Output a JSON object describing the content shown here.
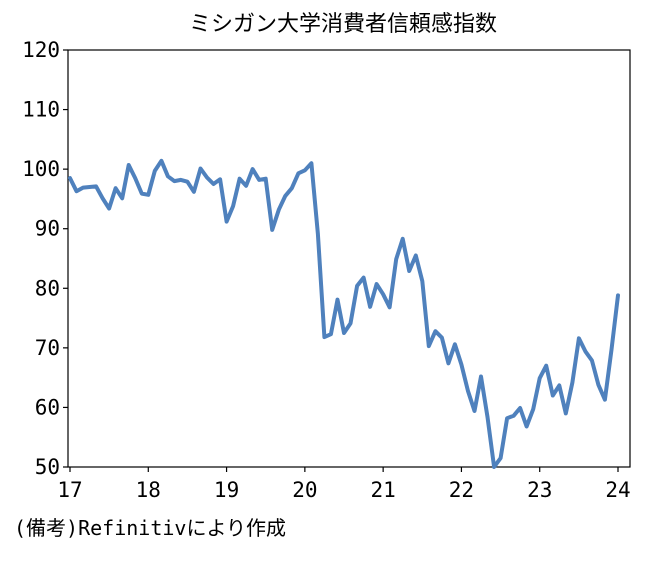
{
  "chart_data": {
    "type": "line",
    "title": "ミシガン大学消費者信頼感指数",
    "xlabel": "",
    "ylabel": "",
    "source_note": "(備考)Refinitivにより作成",
    "ylim": [
      50,
      120
    ],
    "yticks": [
      "120",
      "110",
      "100",
      "90",
      "80",
      "70",
      "60",
      "50"
    ],
    "xticks": [
      "17",
      "18",
      "19",
      "20",
      "21",
      "22",
      "23",
      "24"
    ],
    "xlim": [
      17,
      24
    ],
    "grid": false,
    "legend": "none",
    "line_color": "#4F81BD",
    "series": [
      {
        "x": [
          17.0,
          17.083,
          17.167,
          17.25,
          17.333,
          17.417,
          17.5,
          17.583,
          17.667,
          17.75,
          17.833,
          17.917,
          18.0,
          18.083,
          18.167,
          18.25,
          18.333,
          18.417,
          18.5,
          18.583,
          18.667,
          18.75,
          18.833,
          18.917,
          19.0,
          19.083,
          19.167,
          19.25,
          19.333,
          19.417,
          19.5,
          19.583,
          19.667,
          19.75,
          19.833,
          19.917,
          20.0,
          20.083,
          20.167,
          20.25,
          20.333,
          20.417,
          20.5,
          20.583,
          20.667,
          20.75,
          20.833,
          20.917,
          21.0,
          21.083,
          21.167,
          21.25,
          21.333,
          21.417,
          21.5,
          21.583,
          21.667,
          21.75,
          21.833,
          21.917,
          22.0,
          22.083,
          22.167,
          22.25,
          22.333,
          22.417,
          22.5,
          22.583,
          22.667,
          22.75,
          22.833,
          22.917,
          23.0,
          23.083,
          23.167,
          23.25,
          23.333,
          23.417,
          23.5,
          23.583,
          23.667,
          23.75,
          23.833,
          23.917,
          24.0
        ],
        "values": [
          98.5,
          96.3,
          96.9,
          97.0,
          97.1,
          95.1,
          93.4,
          96.8,
          95.1,
          100.7,
          98.5,
          95.9,
          95.7,
          99.7,
          101.4,
          98.8,
          98.0,
          98.2,
          97.9,
          96.2,
          100.1,
          98.6,
          97.5,
          98.3,
          91.2,
          93.8,
          98.4,
          97.2,
          100.0,
          98.2,
          98.4,
          89.8,
          93.2,
          95.5,
          96.8,
          99.3,
          99.8,
          101.0,
          89.1,
          71.8,
          72.3,
          78.1,
          72.5,
          74.1,
          80.4,
          81.8,
          76.9,
          80.7,
          79.0,
          76.8,
          84.9,
          88.3,
          82.9,
          85.5,
          81.2,
          70.3,
          72.8,
          71.7,
          67.4,
          70.6,
          67.2,
          62.8,
          59.4,
          65.2,
          58.4,
          50.0,
          51.5,
          58.2,
          58.6,
          59.9,
          56.8,
          59.7,
          64.9,
          67.0,
          62.0,
          63.7,
          59.0,
          64.2,
          71.6,
          69.4,
          67.9,
          63.8,
          61.3,
          69.7,
          78.8
        ]
      }
    ]
  }
}
